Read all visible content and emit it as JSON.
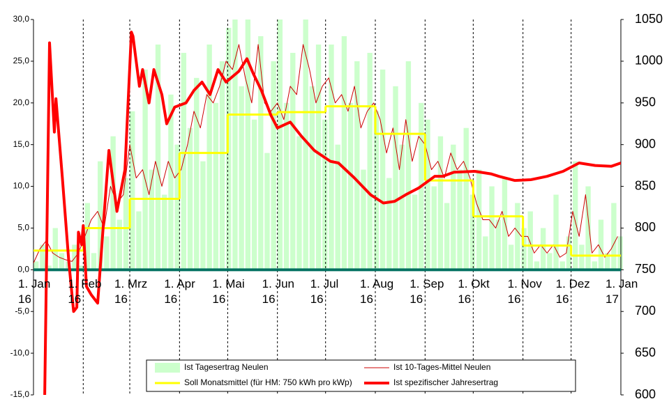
{
  "chart_data": {
    "type": "combo",
    "xlim": [
      0,
      366
    ],
    "xticks": [
      {
        "value": 0,
        "label": "1. Jan\n16"
      },
      {
        "value": 31,
        "label": "1. Feb\n16"
      },
      {
        "value": 60,
        "label": "1. Mrz\n16"
      },
      {
        "value": 91,
        "label": "1. Apr\n16"
      },
      {
        "value": 121,
        "label": "1. Mai\n16"
      },
      {
        "value": 152,
        "label": "1. Jun\n16"
      },
      {
        "value": 182,
        "label": "1. Jul\n16"
      },
      {
        "value": 213,
        "label": "1. Aug\n16"
      },
      {
        "value": 244,
        "label": "1. Sep\n16"
      },
      {
        "value": 274,
        "label": "1. Okt\n16"
      },
      {
        "value": 305,
        "label": "1. Nov\n16"
      },
      {
        "value": 335,
        "label": "1. Dez\n16"
      },
      {
        "value": 366,
        "label": "1. Jan\n17"
      }
    ],
    "ylim": [
      -15,
      30
    ],
    "yticks": [
      {
        "value": -15,
        "label": "-15,0"
      },
      {
        "value": -10,
        "label": "-10,0"
      },
      {
        "value": -5,
        "label": "-5,0"
      },
      {
        "value": 0,
        "label": "0,0"
      },
      {
        "value": 5,
        "label": "5,0"
      },
      {
        "value": 10,
        "label": "10,0"
      },
      {
        "value": 15,
        "label": "15,0"
      },
      {
        "value": 20,
        "label": "20,0"
      },
      {
        "value": 25,
        "label": "25,0"
      },
      {
        "value": 30,
        "label": "30,0"
      }
    ],
    "y2lim": [
      600,
      1050
    ],
    "y2ticks": [
      600,
      650,
      700,
      750,
      800,
      850,
      900,
      950,
      1000,
      1050
    ],
    "series": [
      {
        "name": "Ist Tagesertrag Neulen",
        "type": "bar",
        "color": "#ccffcc",
        "x": [
          0,
          4,
          8,
          12,
          16,
          20,
          24,
          28,
          32,
          36,
          40,
          44,
          48,
          52,
          56,
          60,
          64,
          68,
          72,
          76,
          80,
          84,
          88,
          92,
          96,
          100,
          104,
          108,
          112,
          116,
          120,
          124,
          128,
          132,
          136,
          140,
          144,
          148,
          152,
          156,
          160,
          164,
          168,
          172,
          176,
          180,
          184,
          188,
          192,
          196,
          200,
          204,
          208,
          212,
          216,
          220,
          224,
          228,
          232,
          236,
          240,
          244,
          248,
          252,
          256,
          260,
          264,
          268,
          272,
          276,
          280,
          284,
          288,
          292,
          296,
          300,
          304,
          308,
          312,
          316,
          320,
          324,
          328,
          332,
          336,
          340,
          344,
          348,
          352,
          356,
          360,
          364
        ],
        "values": [
          1,
          3,
          0.5,
          5,
          2,
          1,
          3,
          0.5,
          8,
          2,
          13,
          4,
          16,
          6,
          11,
          19,
          7,
          24,
          12,
          27,
          9,
          21,
          15,
          26,
          17,
          23,
          13,
          27,
          20,
          25,
          29,
          30,
          22,
          30,
          18,
          28,
          14,
          25,
          30,
          20,
          26,
          16,
          30,
          22,
          27,
          18,
          27,
          15,
          28,
          20,
          25,
          12,
          26,
          19,
          24,
          11,
          22,
          15,
          25,
          9,
          20,
          18,
          10,
          16,
          8,
          15,
          12,
          17,
          9,
          12,
          4,
          10,
          6,
          11,
          3,
          8,
          5,
          7,
          1,
          5,
          2,
          9,
          1,
          4,
          13,
          3,
          10,
          1,
          6,
          2,
          8,
          4
        ]
      },
      {
        "name": "Ist 10-Tages-Mittel Neulen",
        "type": "line",
        "color": "#cc0000",
        "line_width": 1,
        "x": [
          0,
          4,
          8,
          12,
          16,
          20,
          24,
          28,
          32,
          36,
          40,
          44,
          48,
          52,
          56,
          60,
          64,
          68,
          72,
          76,
          80,
          84,
          88,
          92,
          96,
          100,
          104,
          108,
          112,
          116,
          120,
          124,
          128,
          132,
          136,
          140,
          144,
          148,
          152,
          156,
          160,
          164,
          168,
          172,
          176,
          180,
          184,
          188,
          192,
          196,
          200,
          204,
          208,
          212,
          216,
          220,
          224,
          228,
          232,
          236,
          240,
          244,
          248,
          252,
          256,
          260,
          264,
          268,
          272,
          276,
          280,
          284,
          288,
          292,
          296,
          300,
          304,
          308,
          312,
          316,
          320,
          324,
          328,
          332,
          336,
          340,
          344,
          348,
          352,
          356,
          360,
          364
        ],
        "values": [
          0.8,
          2.5,
          3.5,
          2,
          1.5,
          1.2,
          1,
          2,
          4,
          6,
          7,
          5,
          10,
          8,
          9,
          15,
          11,
          12,
          9,
          13,
          10,
          13,
          11,
          12,
          15,
          19,
          17,
          21,
          20,
          22,
          25,
          24,
          27,
          23,
          20,
          27,
          20,
          19,
          20,
          18,
          22,
          21,
          27,
          24,
          20,
          22,
          23,
          20,
          21,
          19,
          22,
          17,
          19,
          20,
          18,
          14,
          17,
          12,
          18,
          13,
          16,
          15,
          12,
          13,
          11,
          14,
          12,
          13,
          11,
          8,
          6,
          6,
          5,
          7,
          4,
          5,
          4,
          4,
          2,
          3,
          2,
          3,
          1.5,
          2,
          7,
          4,
          9,
          2,
          3,
          1.5,
          2.5,
          4
        ]
      },
      {
        "name": "Soll Monatsmittel (für HM: 750 kWh pro kWp)",
        "type": "step",
        "color": "#ffff00",
        "line_width": 3,
        "x": [
          0,
          31,
          60,
          91,
          121,
          152,
          182,
          213,
          244,
          274,
          305,
          335
        ],
        "values": [
          2.3,
          5.0,
          8.5,
          14.0,
          18.6,
          18.9,
          19.6,
          16.3,
          10.7,
          6.4,
          2.9,
          1.7
        ]
      },
      {
        "name": "Ist spezifischer Jahresertrag",
        "type": "line",
        "color": "#ff0000",
        "line_width": 4,
        "axis": "y2",
        "x": [
          7,
          10,
          13,
          14,
          18,
          22,
          25,
          27,
          28,
          30,
          31,
          33,
          36,
          40,
          43,
          47,
          52,
          57,
          61,
          62,
          66,
          68,
          72,
          75,
          80,
          83,
          88,
          95,
          100,
          105,
          110,
          115,
          120,
          128,
          133,
          137,
          142,
          148,
          152,
          160,
          167,
          175,
          185,
          190,
          200,
          210,
          218,
          225,
          232,
          240,
          250,
          255,
          262,
          275,
          285,
          290,
          300,
          310,
          320,
          330,
          340,
          350,
          360,
          366
        ],
        "values": [
          600,
          1022,
          915,
          955,
          860,
          760,
          700,
          705,
          795,
          780,
          803,
          730,
          720,
          710,
          790,
          893,
          820,
          870,
          1035,
          1030,
          970,
          990,
          950,
          990,
          960,
          925,
          945,
          950,
          965,
          975,
          960,
          990,
          975,
          988,
          1003,
          985,
          965,
          935,
          920,
          927,
          910,
          893,
          880,
          878,
          860,
          840,
          830,
          832,
          840,
          848,
          862,
          862,
          867,
          868,
          865,
          862,
          857,
          858,
          862,
          868,
          878,
          875,
          874,
          878
        ]
      }
    ]
  }
}
